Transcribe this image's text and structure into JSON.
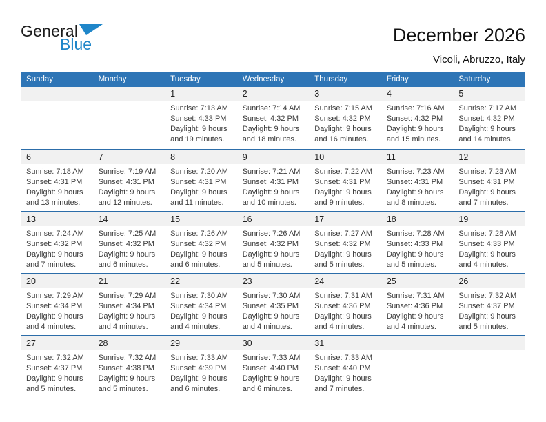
{
  "logo": {
    "text_general": "General",
    "text_blue": "Blue",
    "triangle_color": "#1f86c9"
  },
  "header": {
    "title": "December 2026",
    "subtitle": "Vicoli, Abruzzo, Italy"
  },
  "colors": {
    "weekday_header_bg": "#2e75b6",
    "weekday_header_text": "#ffffff",
    "week_divider": "#2c6da9",
    "day_number_strip_bg": "#f1f1f1",
    "logo_blue": "#1f86c9"
  },
  "weekdays": [
    "Sunday",
    "Monday",
    "Tuesday",
    "Wednesday",
    "Thursday",
    "Friday",
    "Saturday"
  ],
  "weeks": [
    [
      null,
      null,
      {
        "day": "1",
        "lines": [
          "Sunrise: 7:13 AM",
          "Sunset: 4:33 PM",
          "Daylight: 9 hours",
          "and 19 minutes."
        ]
      },
      {
        "day": "2",
        "lines": [
          "Sunrise: 7:14 AM",
          "Sunset: 4:32 PM",
          "Daylight: 9 hours",
          "and 18 minutes."
        ]
      },
      {
        "day": "3",
        "lines": [
          "Sunrise: 7:15 AM",
          "Sunset: 4:32 PM",
          "Daylight: 9 hours",
          "and 16 minutes."
        ]
      },
      {
        "day": "4",
        "lines": [
          "Sunrise: 7:16 AM",
          "Sunset: 4:32 PM",
          "Daylight: 9 hours",
          "and 15 minutes."
        ]
      },
      {
        "day": "5",
        "lines": [
          "Sunrise: 7:17 AM",
          "Sunset: 4:32 PM",
          "Daylight: 9 hours",
          "and 14 minutes."
        ]
      }
    ],
    [
      {
        "day": "6",
        "lines": [
          "Sunrise: 7:18 AM",
          "Sunset: 4:31 PM",
          "Daylight: 9 hours",
          "and 13 minutes."
        ]
      },
      {
        "day": "7",
        "lines": [
          "Sunrise: 7:19 AM",
          "Sunset: 4:31 PM",
          "Daylight: 9 hours",
          "and 12 minutes."
        ]
      },
      {
        "day": "8",
        "lines": [
          "Sunrise: 7:20 AM",
          "Sunset: 4:31 PM",
          "Daylight: 9 hours",
          "and 11 minutes."
        ]
      },
      {
        "day": "9",
        "lines": [
          "Sunrise: 7:21 AM",
          "Sunset: 4:31 PM",
          "Daylight: 9 hours",
          "and 10 minutes."
        ]
      },
      {
        "day": "10",
        "lines": [
          "Sunrise: 7:22 AM",
          "Sunset: 4:31 PM",
          "Daylight: 9 hours",
          "and 9 minutes."
        ]
      },
      {
        "day": "11",
        "lines": [
          "Sunrise: 7:23 AM",
          "Sunset: 4:31 PM",
          "Daylight: 9 hours",
          "and 8 minutes."
        ]
      },
      {
        "day": "12",
        "lines": [
          "Sunrise: 7:23 AM",
          "Sunset: 4:31 PM",
          "Daylight: 9 hours",
          "and 7 minutes."
        ]
      }
    ],
    [
      {
        "day": "13",
        "lines": [
          "Sunrise: 7:24 AM",
          "Sunset: 4:32 PM",
          "Daylight: 9 hours",
          "and 7 minutes."
        ]
      },
      {
        "day": "14",
        "lines": [
          "Sunrise: 7:25 AM",
          "Sunset: 4:32 PM",
          "Daylight: 9 hours",
          "and 6 minutes."
        ]
      },
      {
        "day": "15",
        "lines": [
          "Sunrise: 7:26 AM",
          "Sunset: 4:32 PM",
          "Daylight: 9 hours",
          "and 6 minutes."
        ]
      },
      {
        "day": "16",
        "lines": [
          "Sunrise: 7:26 AM",
          "Sunset: 4:32 PM",
          "Daylight: 9 hours",
          "and 5 minutes."
        ]
      },
      {
        "day": "17",
        "lines": [
          "Sunrise: 7:27 AM",
          "Sunset: 4:32 PM",
          "Daylight: 9 hours",
          "and 5 minutes."
        ]
      },
      {
        "day": "18",
        "lines": [
          "Sunrise: 7:28 AM",
          "Sunset: 4:33 PM",
          "Daylight: 9 hours",
          "and 5 minutes."
        ]
      },
      {
        "day": "19",
        "lines": [
          "Sunrise: 7:28 AM",
          "Sunset: 4:33 PM",
          "Daylight: 9 hours",
          "and 4 minutes."
        ]
      }
    ],
    [
      {
        "day": "20",
        "lines": [
          "Sunrise: 7:29 AM",
          "Sunset: 4:34 PM",
          "Daylight: 9 hours",
          "and 4 minutes."
        ]
      },
      {
        "day": "21",
        "lines": [
          "Sunrise: 7:29 AM",
          "Sunset: 4:34 PM",
          "Daylight: 9 hours",
          "and 4 minutes."
        ]
      },
      {
        "day": "22",
        "lines": [
          "Sunrise: 7:30 AM",
          "Sunset: 4:34 PM",
          "Daylight: 9 hours",
          "and 4 minutes."
        ]
      },
      {
        "day": "23",
        "lines": [
          "Sunrise: 7:30 AM",
          "Sunset: 4:35 PM",
          "Daylight: 9 hours",
          "and 4 minutes."
        ]
      },
      {
        "day": "24",
        "lines": [
          "Sunrise: 7:31 AM",
          "Sunset: 4:36 PM",
          "Daylight: 9 hours",
          "and 4 minutes."
        ]
      },
      {
        "day": "25",
        "lines": [
          "Sunrise: 7:31 AM",
          "Sunset: 4:36 PM",
          "Daylight: 9 hours",
          "and 4 minutes."
        ]
      },
      {
        "day": "26",
        "lines": [
          "Sunrise: 7:32 AM",
          "Sunset: 4:37 PM",
          "Daylight: 9 hours",
          "and 5 minutes."
        ]
      }
    ],
    [
      {
        "day": "27",
        "lines": [
          "Sunrise: 7:32 AM",
          "Sunset: 4:37 PM",
          "Daylight: 9 hours",
          "and 5 minutes."
        ]
      },
      {
        "day": "28",
        "lines": [
          "Sunrise: 7:32 AM",
          "Sunset: 4:38 PM",
          "Daylight: 9 hours",
          "and 5 minutes."
        ]
      },
      {
        "day": "29",
        "lines": [
          "Sunrise: 7:33 AM",
          "Sunset: 4:39 PM",
          "Daylight: 9 hours",
          "and 6 minutes."
        ]
      },
      {
        "day": "30",
        "lines": [
          "Sunrise: 7:33 AM",
          "Sunset: 4:40 PM",
          "Daylight: 9 hours",
          "and 6 minutes."
        ]
      },
      {
        "day": "31",
        "lines": [
          "Sunrise: 7:33 AM",
          "Sunset: 4:40 PM",
          "Daylight: 9 hours",
          "and 7 minutes."
        ]
      },
      null,
      null
    ]
  ]
}
